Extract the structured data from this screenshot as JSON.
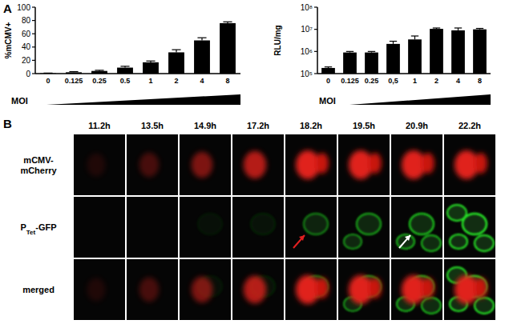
{
  "chart_data": [
    {
      "type": "bar",
      "y_label": "%mCMV+",
      "x_label": "MOI",
      "categories": [
        "0",
        "0.125",
        "0.25",
        "0.5",
        "1",
        "2",
        "4",
        "8"
      ],
      "values": [
        0.5,
        2,
        4,
        9,
        17,
        32,
        50,
        76
      ],
      "errors": [
        0.3,
        1,
        1,
        2,
        2,
        4,
        4,
        2
      ],
      "color": "#000000",
      "ylim": [
        0,
        100
      ],
      "yticks": [
        0,
        20,
        40,
        60,
        80,
        100
      ]
    },
    {
      "type": "bar",
      "y_label": "RLU/mg",
      "x_label": "MOI",
      "log": "y",
      "categories": [
        "0",
        "0.125",
        "0.25",
        "0,5",
        "1",
        "2",
        "4",
        "8"
      ],
      "values": [
        180000,
        900000,
        900000,
        2200000,
        3500000,
        10500000,
        9000000,
        10000000
      ],
      "errors": [
        20000,
        100000,
        100000,
        700000,
        1500000,
        1000000,
        2500000,
        1000000
      ],
      "color": "#000000",
      "ylim": [
        100000,
        100000000
      ],
      "yticks": [
        {
          "value": 100000,
          "label": "10⁵"
        },
        {
          "value": 1000000,
          "label": "10⁶"
        },
        {
          "value": 10000000,
          "label": "10⁷"
        },
        {
          "value": 100000000,
          "label": "10⁸"
        }
      ]
    }
  ],
  "panel_labels": [
    "A",
    "B"
  ],
  "panel_b": {
    "timepoints": [
      "11.2h",
      "13.5h",
      "14.9h",
      "17.2h",
      "18.2h",
      "19.5h",
      "20.9h",
      "22.2h"
    ],
    "rows": [
      {
        "lines": [
          "mCMV-",
          "mCherry"
        ]
      },
      {
        "main": "P",
        "subscript": "Tet",
        "suffix": "-GFP"
      },
      {
        "lines": [
          "merged"
        ]
      }
    ]
  }
}
